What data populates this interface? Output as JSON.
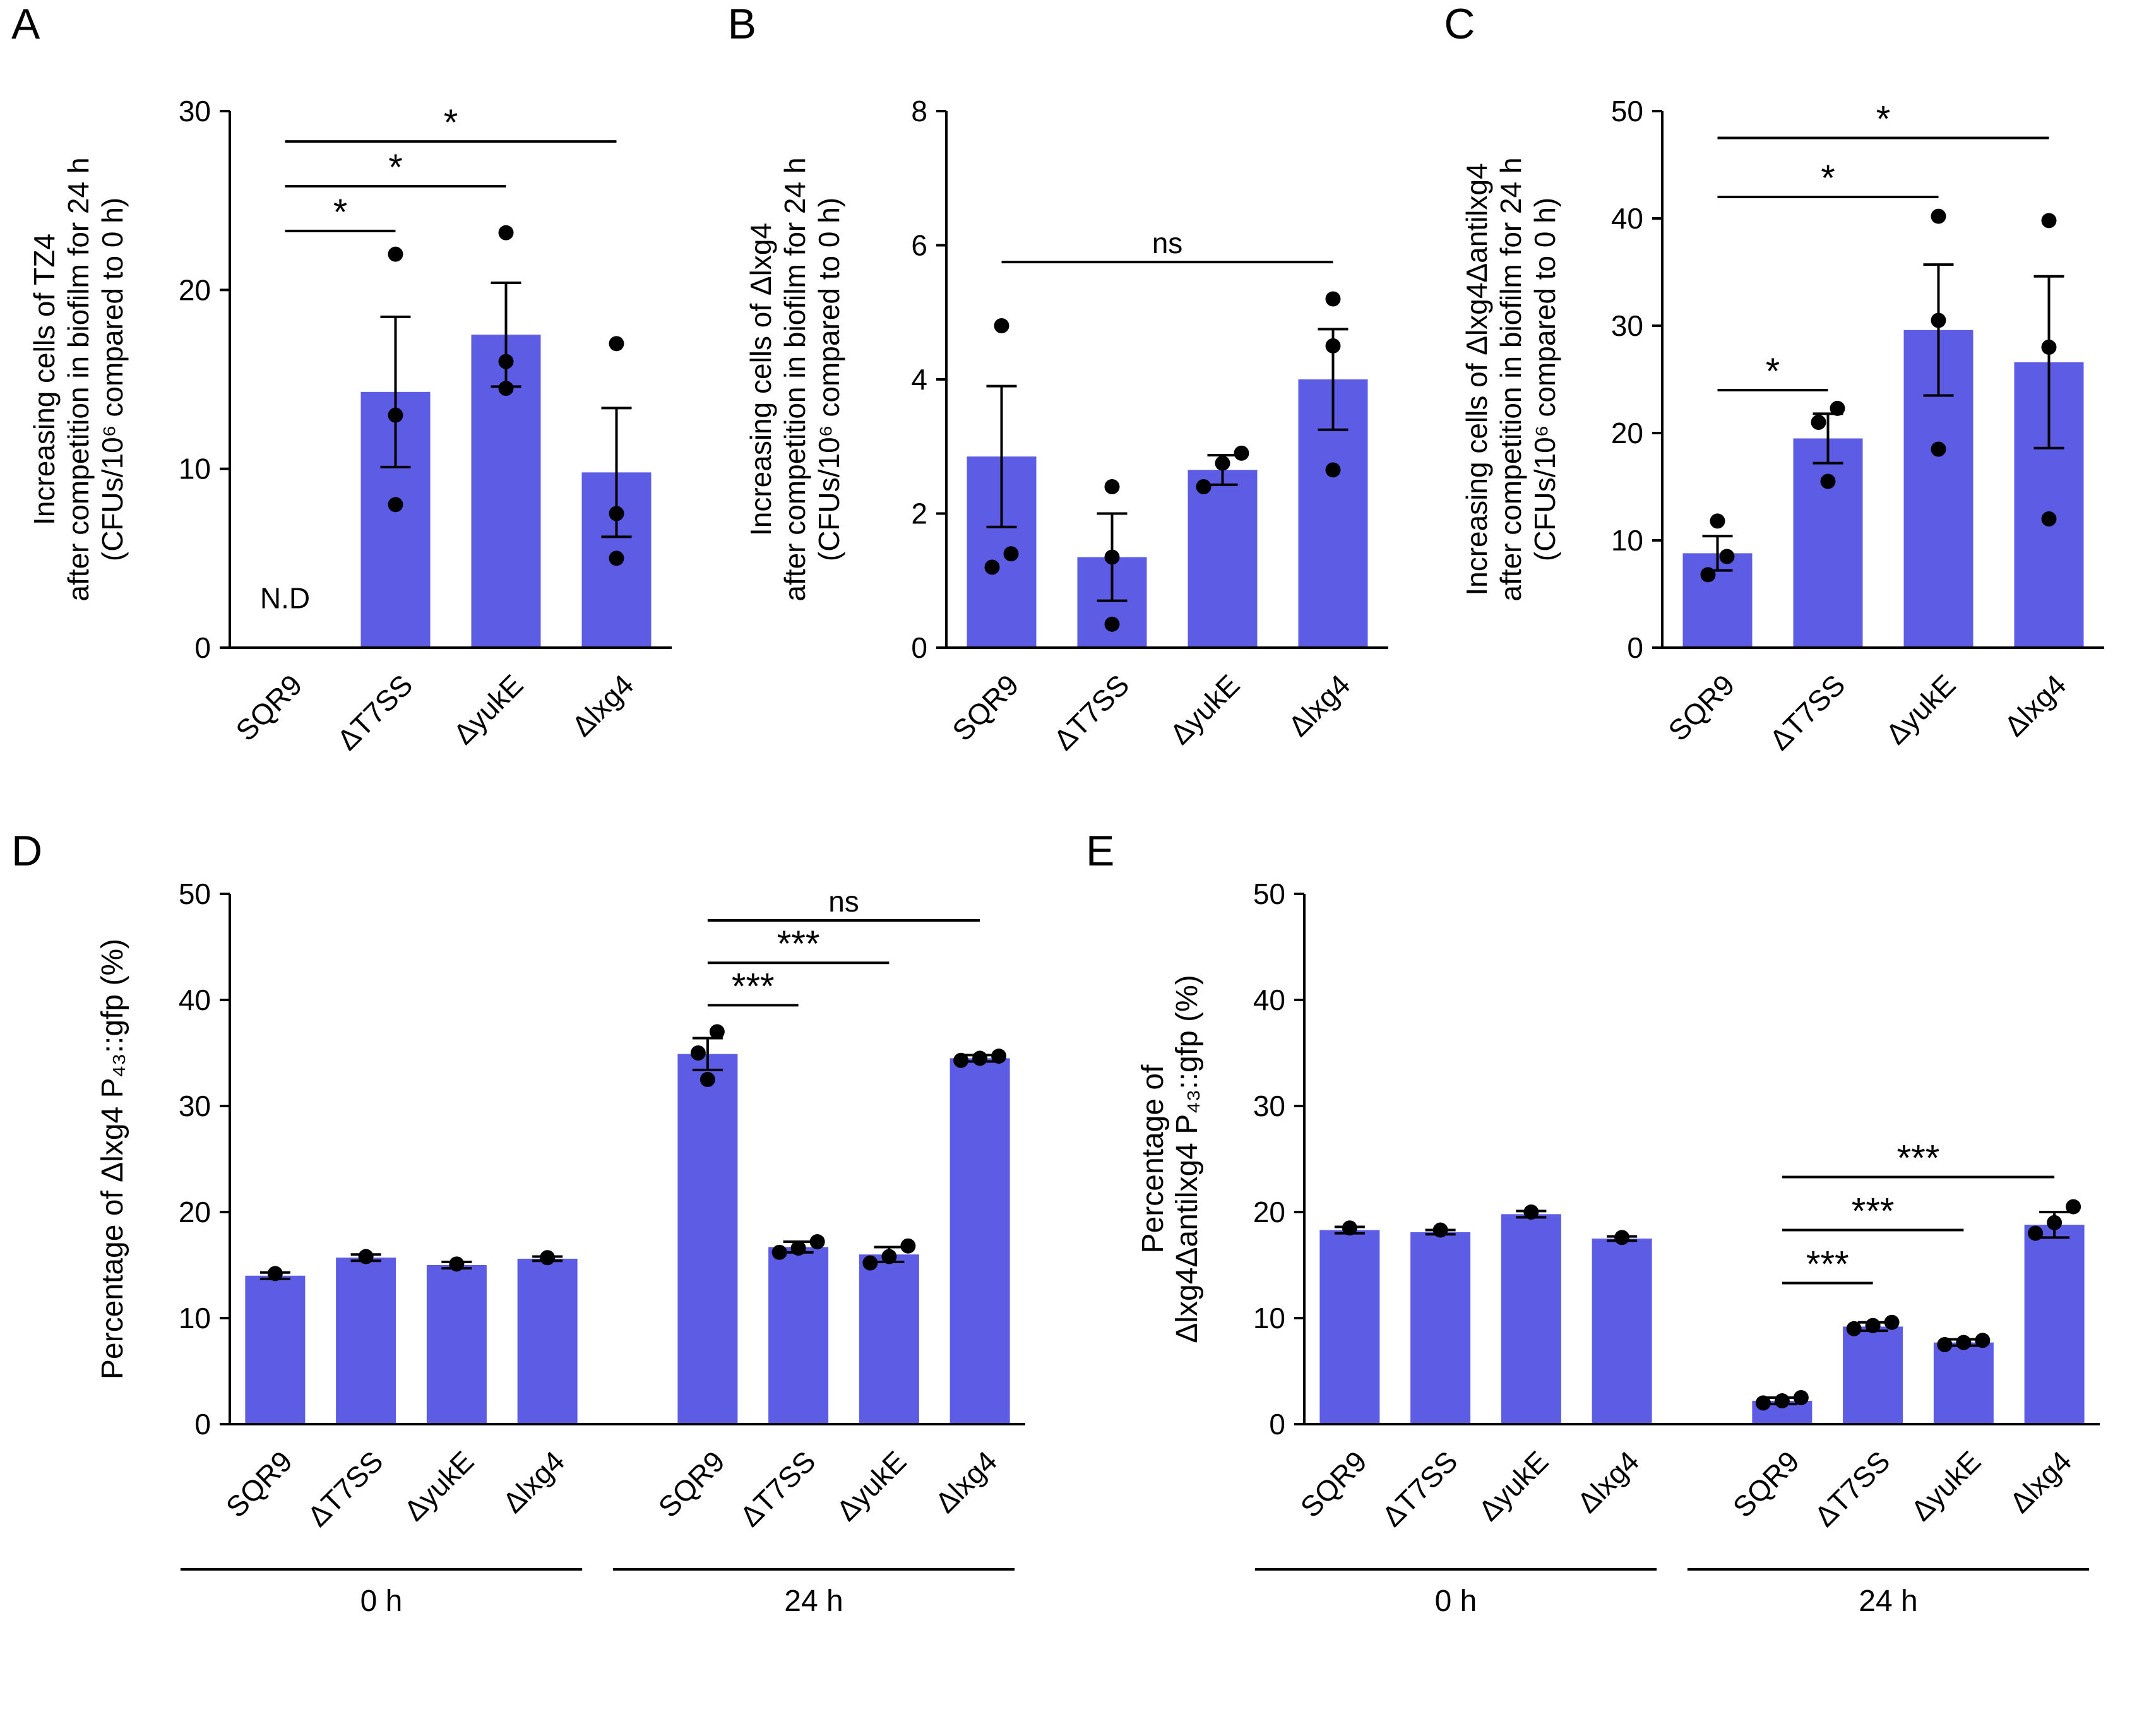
{
  "colors": {
    "bar": "#5c5ce5",
    "point": "#000000",
    "axis": "#000000"
  },
  "chart_data": [
    {
      "panel": "A",
      "type": "bar",
      "ylabel_lines": [
        "Increasing cells of TZ4",
        "after competition in biofilm for 24 h",
        "(CFUs/10⁶ compared to 0 h)"
      ],
      "ylim": [
        0,
        30
      ],
      "yticks": [
        0,
        10,
        20,
        30
      ],
      "groups": [
        {
          "label": "",
          "categories": [
            "SQR9",
            "ΔT7SS",
            "ΔyukE",
            "Δlxg4"
          ],
          "values": [
            0,
            14.3,
            17.5,
            9.8
          ],
          "errors": [
            0,
            4.2,
            2.9,
            3.6
          ],
          "points": [
            [],
            [
              22,
              13,
              8
            ],
            [
              23.2,
              16,
              14.5
            ],
            [
              17,
              7.5,
              5
            ]
          ]
        }
      ],
      "significance": [
        {
          "group": 0,
          "from": 0,
          "to": 1,
          "label": "*",
          "y": 23.3
        },
        {
          "group": 0,
          "from": 0,
          "to": 2,
          "label": "*",
          "y": 25.8
        },
        {
          "group": 0,
          "from": 0,
          "to": 3,
          "label": "*",
          "y": 28.3
        }
      ],
      "annotations": [
        {
          "group": 0,
          "category": 0,
          "text": "N.D",
          "y": 2.2
        }
      ]
    },
    {
      "panel": "B",
      "type": "bar",
      "ylabel_lines": [
        "Increasing cells of Δlxg4",
        "after competition in biofilm for 24 h",
        "(CFUs/10⁶ compared to 0 h)"
      ],
      "ylim": [
        0,
        8
      ],
      "yticks": [
        0,
        2,
        4,
        6,
        8
      ],
      "groups": [
        {
          "label": "",
          "categories": [
            "SQR9",
            "ΔT7SS",
            "ΔyukE",
            "Δlxg4"
          ],
          "values": [
            2.85,
            1.35,
            2.65,
            4.0
          ],
          "errors": [
            1.05,
            0.65,
            0.22,
            0.75
          ],
          "points": [
            [
              4.8,
              1.4,
              1.2
            ],
            [
              2.4,
              1.35,
              0.35
            ],
            [
              2.9,
              2.75,
              2.4
            ],
            [
              5.2,
              4.5,
              2.65
            ]
          ]
        }
      ],
      "significance": [
        {
          "group": 0,
          "from": 0,
          "to": 3,
          "label": "ns",
          "y": 5.75
        }
      ],
      "annotations": []
    },
    {
      "panel": "C",
      "type": "bar",
      "ylabel_lines": [
        "Increasing cells of Δlxg4Δantilxg4",
        "after competition in biofilm for 24 h",
        "(CFUs/10⁶ compared to 0 h)"
      ],
      "ylim": [
        0,
        50
      ],
      "yticks": [
        0,
        10,
        20,
        30,
        40,
        50
      ],
      "groups": [
        {
          "label": "",
          "categories": [
            "SQR9",
            "ΔT7SS",
            "ΔyukE",
            "Δlxg4"
          ],
          "values": [
            8.8,
            19.5,
            29.6,
            26.6
          ],
          "errors": [
            1.6,
            2.3,
            6.1,
            8.0
          ],
          "points": [
            [
              11.8,
              8.5,
              6.8
            ],
            [
              22.3,
              21.0,
              15.5
            ],
            [
              40.2,
              30.5,
              18.5
            ],
            [
              39.8,
              28,
              12
            ]
          ]
        }
      ],
      "significance": [
        {
          "group": 0,
          "from": 0,
          "to": 1,
          "label": "*",
          "y": 24
        },
        {
          "group": 0,
          "from": 0,
          "to": 2,
          "label": "*",
          "y": 42
        },
        {
          "group": 0,
          "from": 0,
          "to": 3,
          "label": "*",
          "y": 47.5
        }
      ],
      "annotations": []
    },
    {
      "panel": "D",
      "type": "bar",
      "ylabel_lines": [
        "Percentage of Δlxg4 P₄₃::gfp (%)"
      ],
      "ylim": [
        0,
        50
      ],
      "yticks": [
        0,
        10,
        20,
        30,
        40,
        50
      ],
      "groups": [
        {
          "label": "0 h",
          "categories": [
            "SQR9",
            "ΔT7SS",
            "ΔyukE",
            "Δlxg4"
          ],
          "values": [
            14.0,
            15.7,
            15.0,
            15.6
          ],
          "errors": [
            0.3,
            0.3,
            0.3,
            0.2
          ],
          "points": [
            [
              14.2
            ],
            [
              15.8
            ],
            [
              15.1
            ],
            [
              15.7
            ]
          ]
        },
        {
          "label": "24 h",
          "categories": [
            "SQR9",
            "ΔT7SS",
            "ΔyukE",
            "Δlxg4"
          ],
          "values": [
            34.9,
            16.7,
            16.0,
            34.5
          ],
          "errors": [
            1.5,
            0.5,
            0.7,
            0.3
          ],
          "points": [
            [
              37,
              35,
              32.5
            ],
            [
              17.2,
              16.6,
              16.2
            ],
            [
              16.8,
              15.8,
              15.2
            ],
            [
              34.7,
              34.5,
              34.3
            ]
          ]
        }
      ],
      "significance": [
        {
          "group": 1,
          "from": 0,
          "to": 1,
          "label": "***",
          "y": 39.5
        },
        {
          "group": 1,
          "from": 0,
          "to": 2,
          "label": "***",
          "y": 43.5
        },
        {
          "group": 1,
          "from": 0,
          "to": 3,
          "label": "ns",
          "y": 47.5
        }
      ],
      "annotations": []
    },
    {
      "panel": "E",
      "type": "bar",
      "ylabel_lines": [
        "Percentage of",
        "Δlxg4Δantilxg4 P₄₃::gfp (%)"
      ],
      "ylim": [
        0,
        50
      ],
      "yticks": [
        0,
        10,
        20,
        30,
        40,
        50
      ],
      "groups": [
        {
          "label": "0 h",
          "categories": [
            "SQR9",
            "ΔT7SS",
            "ΔyukE",
            "Δlxg4"
          ],
          "values": [
            18.3,
            18.1,
            19.8,
            17.5
          ],
          "errors": [
            0.3,
            0.2,
            0.3,
            0.2
          ],
          "points": [
            [
              18.5
            ],
            [
              18.3
            ],
            [
              20.0
            ],
            [
              17.6
            ]
          ]
        },
        {
          "label": "24 h",
          "categories": [
            "SQR9",
            "ΔT7SS",
            "ΔyukE",
            "Δlxg4"
          ],
          "values": [
            2.2,
            9.2,
            7.7,
            18.8
          ],
          "errors": [
            0.3,
            0.4,
            0.3,
            1.2
          ],
          "points": [
            [
              2.5,
              2.2,
              2.0
            ],
            [
              9.6,
              9.3,
              9.0
            ],
            [
              7.9,
              7.7,
              7.5
            ],
            [
              20.5,
              19.0,
              18.0
            ]
          ]
        }
      ],
      "significance": [
        {
          "group": 1,
          "from": 0,
          "to": 1,
          "label": "***",
          "y": 13.3
        },
        {
          "group": 1,
          "from": 0,
          "to": 2,
          "label": "***",
          "y": 18.3
        },
        {
          "group": 1,
          "from": 0,
          "to": 3,
          "label": "***",
          "y": 23.3
        }
      ],
      "annotations": []
    }
  ]
}
